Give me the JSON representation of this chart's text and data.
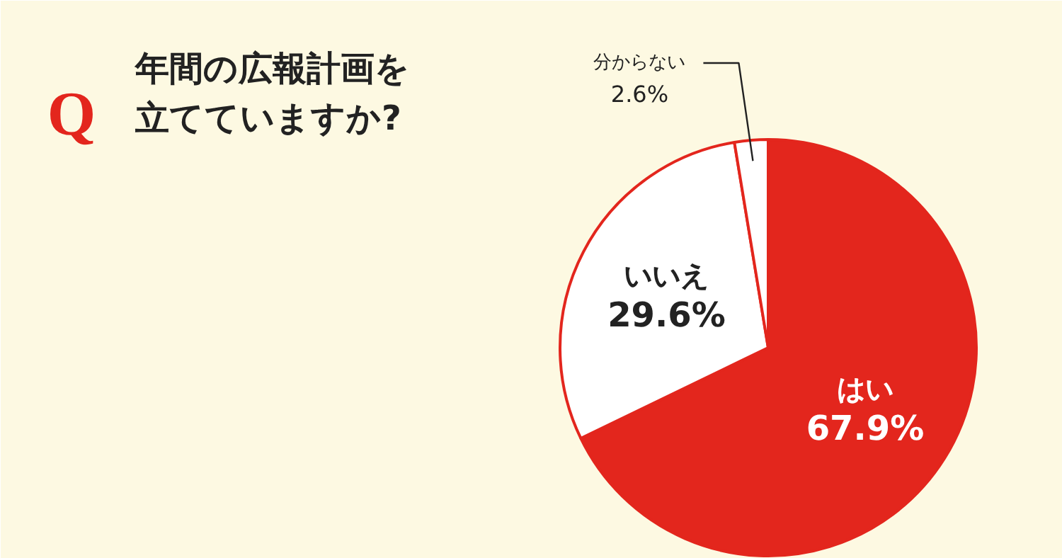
{
  "chart_data": {
    "type": "pie",
    "title": "年間の広報計画を立てていますか?",
    "annotations": [
      "Q"
    ],
    "categories": [
      "はい",
      "いいえ",
      "分からない"
    ],
    "values": [
      67.9,
      29.6,
      2.6
    ],
    "colors": [
      "#e3261d",
      "#ffffff",
      "#ffffff"
    ],
    "value_labels": [
      "67.9%",
      "29.6%",
      "2.6%"
    ]
  }
}
